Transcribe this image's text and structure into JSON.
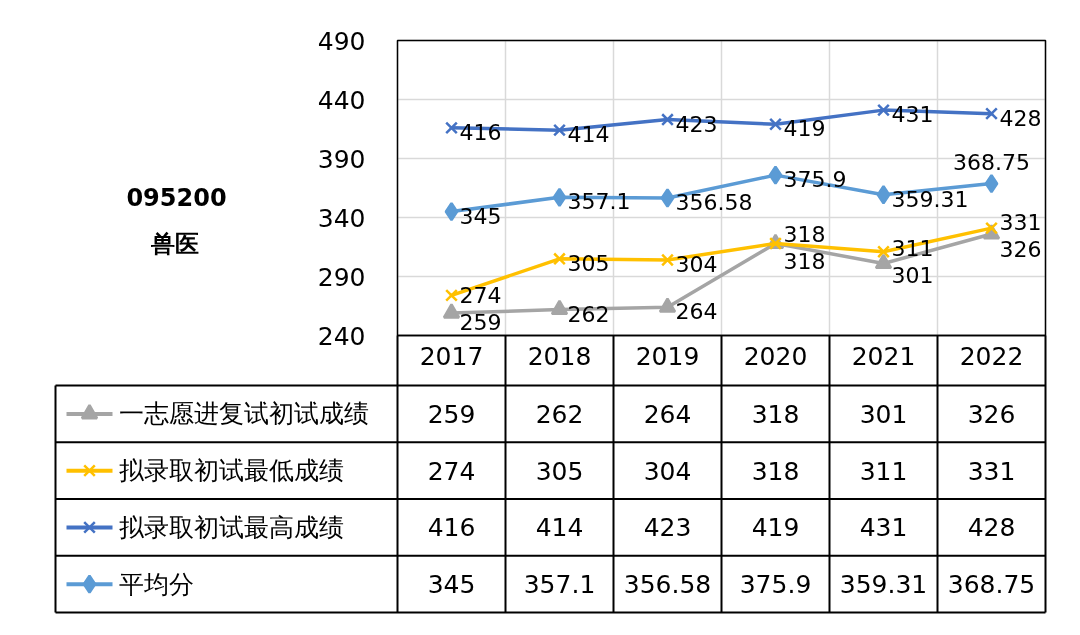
{
  "chart_data": {
    "type": "line",
    "title": "095200",
    "subtitle": "兽医",
    "categories": [
      "2017",
      "2018",
      "2019",
      "2020",
      "2021",
      "2022"
    ],
    "series": [
      {
        "name": "一志愿进复试初试成绩",
        "color": "#a5a5a5",
        "marker": "triangle",
        "values": [
          259,
          262,
          264,
          318,
          301,
          326
        ],
        "value_labels": [
          "259",
          "262",
          "264",
          "318",
          "301",
          "326"
        ]
      },
      {
        "name": "拟录取初试最低成绩",
        "color": "#ffc000",
        "marker": "cross",
        "values": [
          274,
          305,
          304,
          318,
          311,
          331
        ],
        "value_labels": [
          "274",
          "305",
          "304",
          "318",
          "311",
          "331"
        ]
      },
      {
        "name": "拟录取初试最高成绩",
        "color": "#4472c4",
        "marker": "cross",
        "values": [
          416,
          414,
          423,
          419,
          431,
          428
        ],
        "value_labels": [
          "416",
          "414",
          "423",
          "419",
          "431",
          "428"
        ]
      },
      {
        "name": "平均分",
        "color": "#5b9bd5",
        "marker": "diamond",
        "values": [
          345,
          357.1,
          356.58,
          375.9,
          359.31,
          368.75
        ],
        "value_labels": [
          "345",
          "357.1",
          "356.58",
          "375.9",
          "359.31",
          "368.75"
        ]
      }
    ],
    "annotations": [
      "259",
      "262",
      "264",
      "318",
      "301",
      "326",
      "274",
      "305",
      "304",
      "318",
      "311",
      "331",
      "416",
      "414",
      "423",
      "419",
      "431",
      "428",
      "345",
      "357.1",
      "356.58",
      "375.9",
      "359.31",
      "368.75"
    ],
    "ylim": [
      240,
      490
    ],
    "yticks": [
      240,
      290,
      340,
      390,
      440,
      490
    ],
    "grid": true,
    "legend": "bottom",
    "line_style": "solid"
  }
}
